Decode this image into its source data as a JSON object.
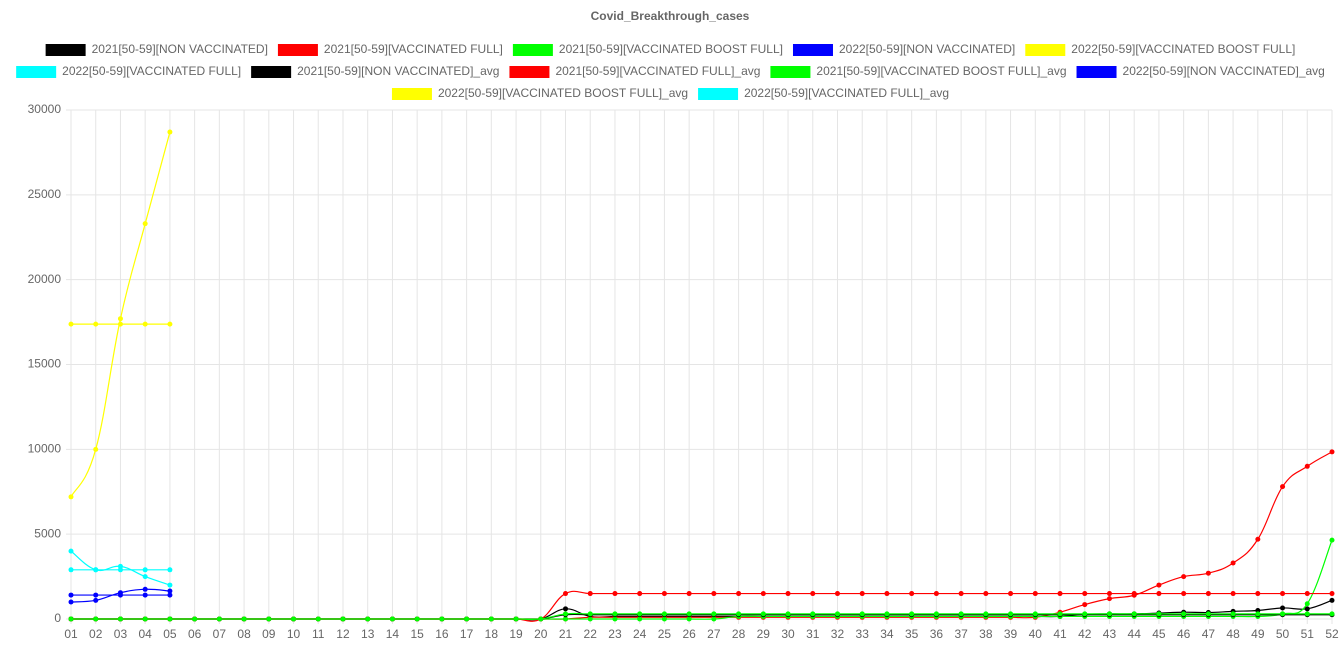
{
  "chart_data": {
    "type": "line",
    "title": "Covid_Breakthrough_cases",
    "categories": [
      "01",
      "02",
      "03",
      "04",
      "05",
      "06",
      "07",
      "08",
      "09",
      "10",
      "11",
      "12",
      "13",
      "14",
      "15",
      "16",
      "17",
      "18",
      "19",
      "20",
      "21",
      "22",
      "23",
      "24",
      "25",
      "26",
      "27",
      "28",
      "29",
      "30",
      "31",
      "32",
      "33",
      "34",
      "35",
      "36",
      "37",
      "38",
      "39",
      "40",
      "41",
      "42",
      "43",
      "44",
      "45",
      "46",
      "47",
      "48",
      "49",
      "50",
      "51",
      "52"
    ],
    "ylim": [
      0,
      30000
    ],
    "yticks": [
      0,
      5000,
      10000,
      15000,
      20000,
      25000,
      30000
    ],
    "grid": true,
    "series": [
      {
        "name": "2021[50-59][NON VACCINATED]",
        "color": "#000000",
        "values": [
          0,
          0,
          0,
          0,
          0,
          0,
          0,
          0,
          0,
          0,
          0,
          0,
          0,
          0,
          0,
          0,
          0,
          0,
          0,
          0,
          600,
          150,
          150,
          150,
          150,
          150,
          150,
          150,
          150,
          150,
          150,
          150,
          150,
          150,
          150,
          150,
          150,
          150,
          150,
          150,
          150,
          280,
          300,
          300,
          350,
          400,
          380,
          450,
          500,
          650,
          600,
          1100
        ]
      },
      {
        "name": "2021[50-59][VACCINATED FULL]",
        "color": "#ff0000",
        "values": [
          0,
          0,
          0,
          0,
          0,
          0,
          0,
          0,
          0,
          0,
          0,
          0,
          0,
          0,
          0,
          0,
          0,
          0,
          0,
          0,
          0,
          100,
          100,
          100,
          100,
          100,
          100,
          100,
          100,
          100,
          100,
          100,
          100,
          100,
          100,
          100,
          100,
          100,
          100,
          100,
          400,
          850,
          1200,
          1400,
          2000,
          2500,
          2700,
          3300,
          4700,
          7800,
          9000,
          9850
        ]
      },
      {
        "name": "2021[50-59][VACCINATED BOOST FULL]",
        "color": "#00ff00",
        "values": [
          0,
          0,
          0,
          0,
          0,
          0,
          0,
          0,
          0,
          0,
          0,
          0,
          0,
          0,
          0,
          0,
          0,
          0,
          0,
          0,
          0,
          0,
          0,
          0,
          0,
          0,
          0,
          150,
          150,
          150,
          150,
          150,
          150,
          150,
          150,
          150,
          150,
          150,
          150,
          150,
          150,
          150,
          150,
          150,
          150,
          150,
          150,
          150,
          150,
          300,
          900,
          4650
        ]
      },
      {
        "name": "2022[50-59][NON VACCINATED]",
        "color": "#0000ff",
        "values": [
          1000,
          1100,
          1550,
          1750,
          1650,
          null,
          null,
          null,
          null,
          null,
          null,
          null,
          null,
          null,
          null,
          null,
          null,
          null,
          null,
          null,
          null,
          null,
          null,
          null,
          null,
          null,
          null,
          null,
          null,
          null,
          null,
          null,
          null,
          null,
          null,
          null,
          null,
          null,
          null,
          null,
          null,
          null,
          null,
          null,
          null,
          null,
          null,
          null,
          null,
          null,
          null,
          null
        ]
      },
      {
        "name": "2022[50-59][VACCINATED BOOST FULL]",
        "color": "#ffff00",
        "values": [
          7200,
          10000,
          17700,
          23300,
          28700,
          null,
          null,
          null,
          null,
          null,
          null,
          null,
          null,
          null,
          null,
          null,
          null,
          null,
          null,
          null,
          null,
          null,
          null,
          null,
          null,
          null,
          null,
          null,
          null,
          null,
          null,
          null,
          null,
          null,
          null,
          null,
          null,
          null,
          null,
          null,
          null,
          null,
          null,
          null,
          null,
          null,
          null,
          null,
          null,
          null,
          null,
          null
        ]
      },
      {
        "name": "2022[50-59][VACCINATED FULL]",
        "color": "#00ffff",
        "values": [
          4000,
          2900,
          3100,
          2500,
          2000,
          null,
          null,
          null,
          null,
          null,
          null,
          null,
          null,
          null,
          null,
          null,
          null,
          null,
          null,
          null,
          null,
          null,
          null,
          null,
          null,
          null,
          null,
          null,
          null,
          null,
          null,
          null,
          null,
          null,
          null,
          null,
          null,
          null,
          null,
          null,
          null,
          null,
          null,
          null,
          null,
          null,
          null,
          null,
          null,
          null,
          null,
          null
        ]
      },
      {
        "name": "2021[50-59][NON VACCINATED]_avg",
        "color": "#000000",
        "values": [
          0,
          0,
          0,
          0,
          0,
          0,
          0,
          0,
          0,
          0,
          0,
          0,
          0,
          0,
          0,
          0,
          0,
          0,
          0,
          0,
          250,
          250,
          250,
          250,
          250,
          250,
          250,
          250,
          250,
          250,
          250,
          250,
          250,
          250,
          250,
          250,
          250,
          250,
          250,
          250,
          250,
          250,
          250,
          250,
          250,
          250,
          250,
          250,
          250,
          250,
          250,
          250
        ]
      },
      {
        "name": "2021[50-59][VACCINATED FULL]_avg",
        "color": "#ff0000",
        "values": [
          0,
          0,
          0,
          0,
          0,
          0,
          0,
          0,
          0,
          0,
          0,
          0,
          0,
          0,
          0,
          0,
          0,
          0,
          0,
          0,
          1500,
          1500,
          1500,
          1500,
          1500,
          1500,
          1500,
          1500,
          1500,
          1500,
          1500,
          1500,
          1500,
          1500,
          1500,
          1500,
          1500,
          1500,
          1500,
          1500,
          1500,
          1500,
          1500,
          1500,
          1500,
          1500,
          1500,
          1500,
          1500,
          1500,
          1500,
          1500
        ]
      },
      {
        "name": "2021[50-59][VACCINATED BOOST FULL]_avg",
        "color": "#00ff00",
        "values": [
          0,
          0,
          0,
          0,
          0,
          0,
          0,
          0,
          0,
          0,
          0,
          0,
          0,
          0,
          0,
          0,
          0,
          0,
          0,
          0,
          300,
          300,
          300,
          300,
          300,
          300,
          300,
          300,
          300,
          300,
          300,
          300,
          300,
          300,
          300,
          300,
          300,
          300,
          300,
          300,
          300,
          300,
          300,
          300,
          300,
          300,
          300,
          300,
          300,
          300,
          300,
          300
        ]
      },
      {
        "name": "2022[50-59][NON VACCINATED]_avg",
        "color": "#0000ff",
        "values": [
          1410,
          1410,
          1410,
          1410,
          1410,
          null,
          null,
          null,
          null,
          null,
          null,
          null,
          null,
          null,
          null,
          null,
          null,
          null,
          null,
          null,
          null,
          null,
          null,
          null,
          null,
          null,
          null,
          null,
          null,
          null,
          null,
          null,
          null,
          null,
          null,
          null,
          null,
          null,
          null,
          null,
          null,
          null,
          null,
          null,
          null,
          null,
          null,
          null,
          null,
          null,
          null,
          null
        ]
      },
      {
        "name": "2022[50-59][VACCINATED BOOST FULL]_avg",
        "color": "#ffff00",
        "values": [
          17380,
          17380,
          17380,
          17380,
          17380,
          null,
          null,
          null,
          null,
          null,
          null,
          null,
          null,
          null,
          null,
          null,
          null,
          null,
          null,
          null,
          null,
          null,
          null,
          null,
          null,
          null,
          null,
          null,
          null,
          null,
          null,
          null,
          null,
          null,
          null,
          null,
          null,
          null,
          null,
          null,
          null,
          null,
          null,
          null,
          null,
          null,
          null,
          null,
          null,
          null,
          null,
          null
        ]
      },
      {
        "name": "2022[50-59][VACCINATED FULL]_avg",
        "color": "#00ffff",
        "values": [
          2900,
          2900,
          2900,
          2900,
          2900,
          null,
          null,
          null,
          null,
          null,
          null,
          null,
          null,
          null,
          null,
          null,
          null,
          null,
          null,
          null,
          null,
          null,
          null,
          null,
          null,
          null,
          null,
          null,
          null,
          null,
          null,
          null,
          null,
          null,
          null,
          null,
          null,
          null,
          null,
          null,
          null,
          null,
          null,
          null,
          null,
          null,
          null,
          null,
          null,
          null,
          null,
          null
        ]
      }
    ]
  }
}
